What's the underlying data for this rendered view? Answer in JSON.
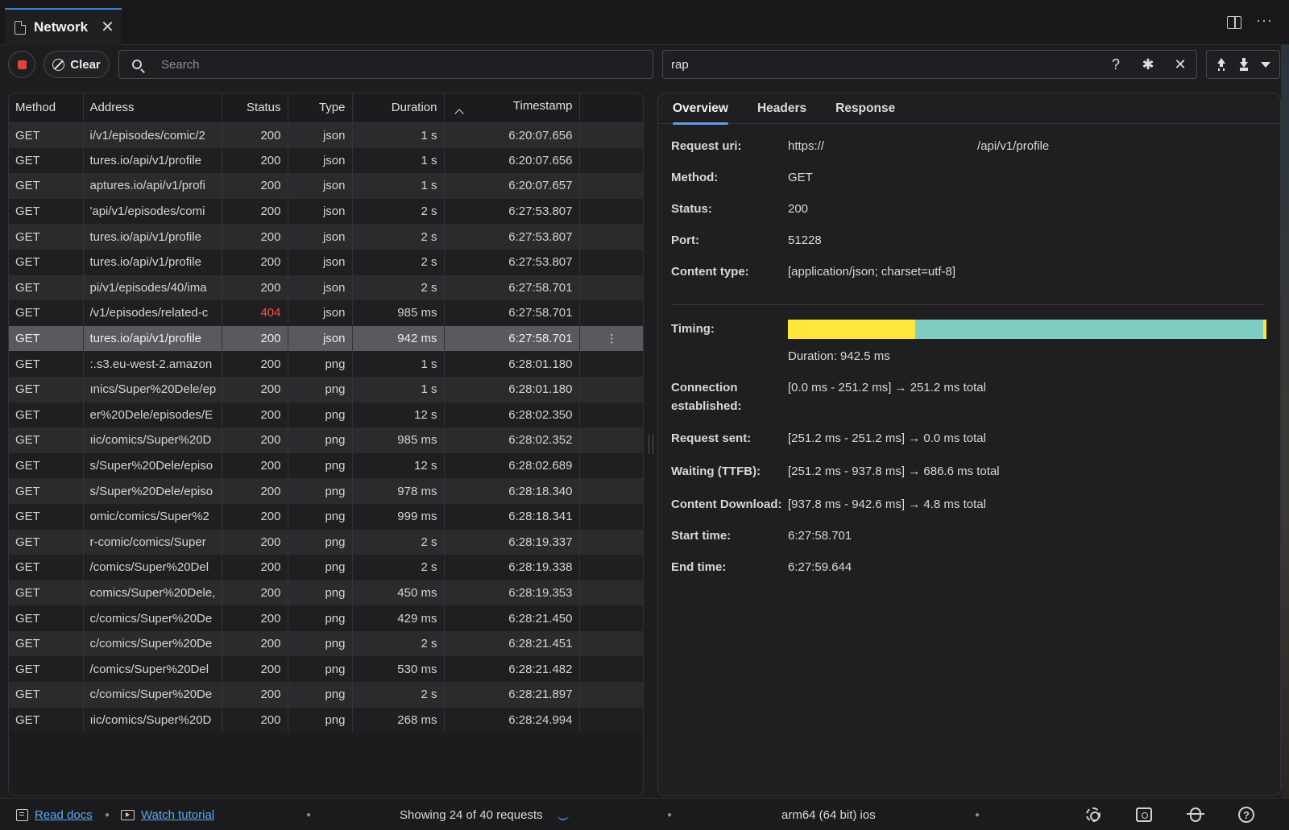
{
  "tab": {
    "label": "Network",
    "close": "✕"
  },
  "toolbar": {
    "clear_label": "Clear",
    "search_placeholder": "Search",
    "filter_value": "rap",
    "filter_help": "?",
    "filter_regex": "✱",
    "filter_clear": "✕"
  },
  "table": {
    "columns": {
      "method": "Method",
      "address": "Address",
      "status": "Status",
      "type": "Type",
      "duration": "Duration",
      "timestamp": "Timestamp"
    },
    "rows": [
      {
        "method": "GET",
        "address": "i/v1/episodes/comic/2",
        "status": "200",
        "type": "json",
        "duration": "1 s",
        "timestamp": "6:20:07.656"
      },
      {
        "method": "GET",
        "address": "tures.io/api/v1/profile",
        "status": "200",
        "type": "json",
        "duration": "1 s",
        "timestamp": "6:20:07.656"
      },
      {
        "method": "GET",
        "address": "aptures.io/api/v1/profi",
        "status": "200",
        "type": "json",
        "duration": "1 s",
        "timestamp": "6:20:07.657"
      },
      {
        "method": "GET",
        "address": "'api/v1/episodes/comi",
        "status": "200",
        "type": "json",
        "duration": "2 s",
        "timestamp": "6:27:53.807"
      },
      {
        "method": "GET",
        "address": "tures.io/api/v1/profile",
        "status": "200",
        "type": "json",
        "duration": "2 s",
        "timestamp": "6:27:53.807"
      },
      {
        "method": "GET",
        "address": "tures.io/api/v1/profile",
        "status": "200",
        "type": "json",
        "duration": "2 s",
        "timestamp": "6:27:53.807"
      },
      {
        "method": "GET",
        "address": "pi/v1/episodes/40/ima",
        "status": "200",
        "type": "json",
        "duration": "2 s",
        "timestamp": "6:27:58.701"
      },
      {
        "method": "GET",
        "address": "/v1/episodes/related-c",
        "status": "404",
        "type": "json",
        "duration": "985 ms",
        "timestamp": "6:27:58.701"
      },
      {
        "method": "GET",
        "address": "tures.io/api/v1/profile",
        "status": "200",
        "type": "json",
        "duration": "942 ms",
        "timestamp": "6:27:58.701",
        "selected": true
      },
      {
        "method": "GET",
        "address": ":.s3.eu-west-2.amazon",
        "status": "200",
        "type": "png",
        "duration": "1 s",
        "timestamp": "6:28:01.180"
      },
      {
        "method": "GET",
        "address": "ınics/Super%20Dele/ep",
        "status": "200",
        "type": "png",
        "duration": "1 s",
        "timestamp": "6:28:01.180"
      },
      {
        "method": "GET",
        "address": "er%20Dele/episodes/E",
        "status": "200",
        "type": "png",
        "duration": "12 s",
        "timestamp": "6:28:02.350"
      },
      {
        "method": "GET",
        "address": "ıic/comics/Super%20D",
        "status": "200",
        "type": "png",
        "duration": "985 ms",
        "timestamp": "6:28:02.352"
      },
      {
        "method": "GET",
        "address": "s/Super%20Dele/episo",
        "status": "200",
        "type": "png",
        "duration": "12 s",
        "timestamp": "6:28:02.689"
      },
      {
        "method": "GET",
        "address": "s/Super%20Dele/episo",
        "status": "200",
        "type": "png",
        "duration": "978 ms",
        "timestamp": "6:28:18.340"
      },
      {
        "method": "GET",
        "address": "omic/comics/Super%2",
        "status": "200",
        "type": "png",
        "duration": "999 ms",
        "timestamp": "6:28:18.341"
      },
      {
        "method": "GET",
        "address": "r-comic/comics/Super",
        "status": "200",
        "type": "png",
        "duration": "2 s",
        "timestamp": "6:28:19.337"
      },
      {
        "method": "GET",
        "address": "/comics/Super%20Del",
        "status": "200",
        "type": "png",
        "duration": "2 s",
        "timestamp": "6:28:19.338"
      },
      {
        "method": "GET",
        "address": "comics/Super%20Dele,",
        "status": "200",
        "type": "png",
        "duration": "450 ms",
        "timestamp": "6:28:19.353"
      },
      {
        "method": "GET",
        "address": "c/comics/Super%20De",
        "status": "200",
        "type": "png",
        "duration": "429 ms",
        "timestamp": "6:28:21.450"
      },
      {
        "method": "GET",
        "address": "c/comics/Super%20De",
        "status": "200",
        "type": "png",
        "duration": "2 s",
        "timestamp": "6:28:21.451"
      },
      {
        "method": "GET",
        "address": "/comics/Super%20Del",
        "status": "200",
        "type": "png",
        "duration": "530 ms",
        "timestamp": "6:28:21.482"
      },
      {
        "method": "GET",
        "address": "c/comics/Super%20De",
        "status": "200",
        "type": "png",
        "duration": "2 s",
        "timestamp": "6:28:21.897"
      },
      {
        "method": "GET",
        "address": "ıic/comics/Super%20D",
        "status": "200",
        "type": "png",
        "duration": "268 ms",
        "timestamp": "6:28:24.994"
      }
    ]
  },
  "details": {
    "tabs": [
      "Overview",
      "Headers",
      "Response"
    ],
    "request_uri_label": "Request uri:",
    "request_uri_prefix": "https://",
    "request_uri_suffix": "/api/v1/profile",
    "method_label": "Method:",
    "method": "GET",
    "status_label": "Status:",
    "status": "200",
    "port_label": "Port:",
    "port": "51228",
    "content_type_label": "Content type:",
    "content_type": "[application/json; charset=utf-8]",
    "timing_label": "Timing:",
    "timing": {
      "connection_fraction": 0.266,
      "transfer_fraction": 0.728,
      "colors": [
        "#ffe83a",
        "#7ecdc2",
        "#ffe83a"
      ]
    },
    "duration": "Duration: 942.5 ms",
    "connection_label_1": "Connection",
    "connection_label_2": "established:",
    "connection": "[0.0 ms - 251.2 ms] → 251.2 ms total",
    "request_sent_label": "Request sent:",
    "request_sent": "[251.2 ms - 251.2 ms] → 0.0 ms total",
    "waiting_label": "Waiting (TTFB):",
    "waiting": "[251.2 ms - 937.8 ms] → 686.6 ms total",
    "download_label": "Content Download:",
    "download": "[937.8 ms - 942.6 ms] → 4.8 ms total",
    "start_label": "Start time:",
    "start": "6:27:58.701",
    "end_label": "End time:",
    "end": "6:27:59.644"
  },
  "statusbar": {
    "read_docs": "Read docs",
    "watch_tutorial": "Watch tutorial",
    "showing": "Showing 24 of 40 requests",
    "arch": "arm64 (64 bit) ios"
  }
}
